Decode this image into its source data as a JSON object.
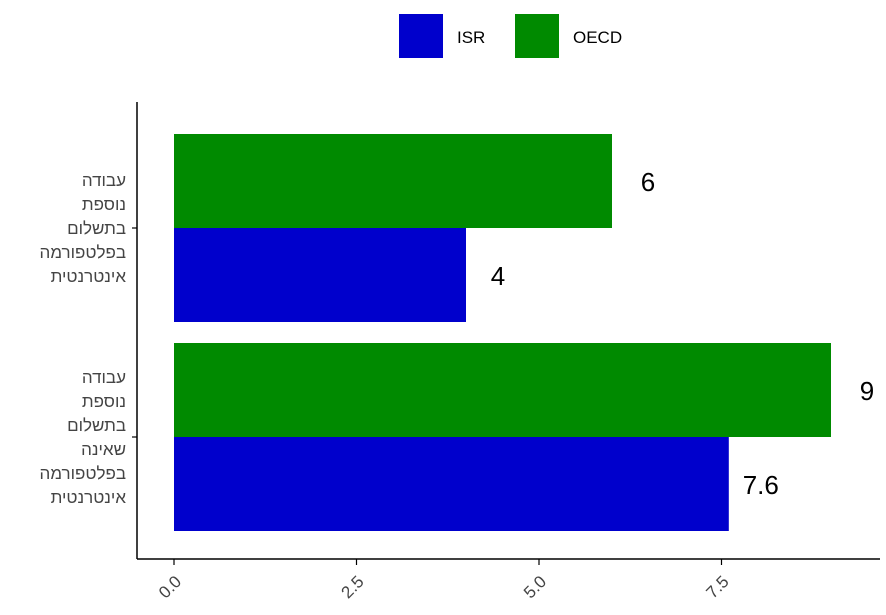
{
  "chart_data": {
    "type": "bar",
    "orientation": "horizontal",
    "categories": [
      [
        "עבודה",
        "נוספת",
        "בתשלום",
        "בפלטפורמה",
        "אינטרנטית"
      ],
      [
        "עבודה",
        "נוספת",
        "בתשלום",
        "שאינה",
        "בפלטפורמה",
        "אינטרנטית"
      ]
    ],
    "series": [
      {
        "name": "ISR",
        "color": "#0000cc",
        "values": [
          4,
          7.6
        ],
        "labels": [
          "4",
          "7.6"
        ]
      },
      {
        "name": "OECD",
        "color": "#008a00",
        "values": [
          6,
          9
        ],
        "labels": [
          "6",
          "9"
        ]
      }
    ],
    "xticks": [
      "0.0",
      "2.5",
      "5.0",
      "7.5"
    ],
    "xtick_values": [
      0,
      2.5,
      5,
      7.5
    ],
    "xlim": [
      -0.5,
      9.5
    ],
    "title": "",
    "xlabel": "",
    "ylabel": "",
    "legend_position": "top",
    "grid": false
  }
}
